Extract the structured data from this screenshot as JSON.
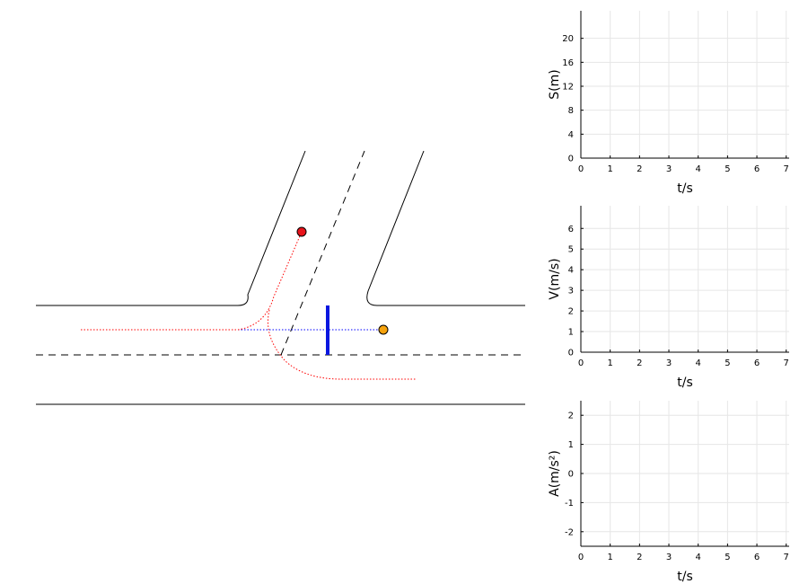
{
  "scene": {
    "road_color": "#000000",
    "vehicles": [
      {
        "name": "red",
        "color": "#e8141b"
      },
      {
        "name": "orange",
        "color": "#f5a20c"
      }
    ],
    "stop_line_color": "#0a17e0",
    "path_colors": {
      "red": "#ff0000",
      "blue": "#0000ff"
    }
  },
  "chart_data": [
    {
      "type": "line",
      "title": "",
      "xlabel": "t/s",
      "ylabel": "S(m)",
      "x_ticks": [
        "0",
        "1",
        "2",
        "3",
        "4",
        "5",
        "6",
        "7"
      ],
      "y_ticks": [
        "0",
        "4",
        "8",
        "12",
        "16",
        "20"
      ],
      "xlim": [
        0,
        7.1
      ],
      "ylim": [
        0,
        24.6
      ],
      "grid": true,
      "series": []
    },
    {
      "type": "line",
      "title": "",
      "xlabel": "t/s",
      "ylabel": "V(m/s)",
      "x_ticks": [
        "0",
        "1",
        "2",
        "3",
        "4",
        "5",
        "6",
        "7"
      ],
      "y_ticks": [
        "0",
        "1",
        "2",
        "3",
        "4",
        "5",
        "6"
      ],
      "xlim": [
        0,
        7.1
      ],
      "ylim": [
        0,
        7.1
      ],
      "grid": true,
      "series": []
    },
    {
      "type": "line",
      "title": "",
      "xlabel": "t/s",
      "ylabel": "A(m/s²)",
      "x_ticks": [
        "0",
        "1",
        "2",
        "3",
        "4",
        "5",
        "6",
        "7"
      ],
      "y_ticks": [
        "-2",
        "-1",
        "0",
        "1",
        "2"
      ],
      "xlim": [
        0,
        7.1
      ],
      "ylim": [
        -2.5,
        2.5
      ],
      "grid": true,
      "series": []
    }
  ]
}
